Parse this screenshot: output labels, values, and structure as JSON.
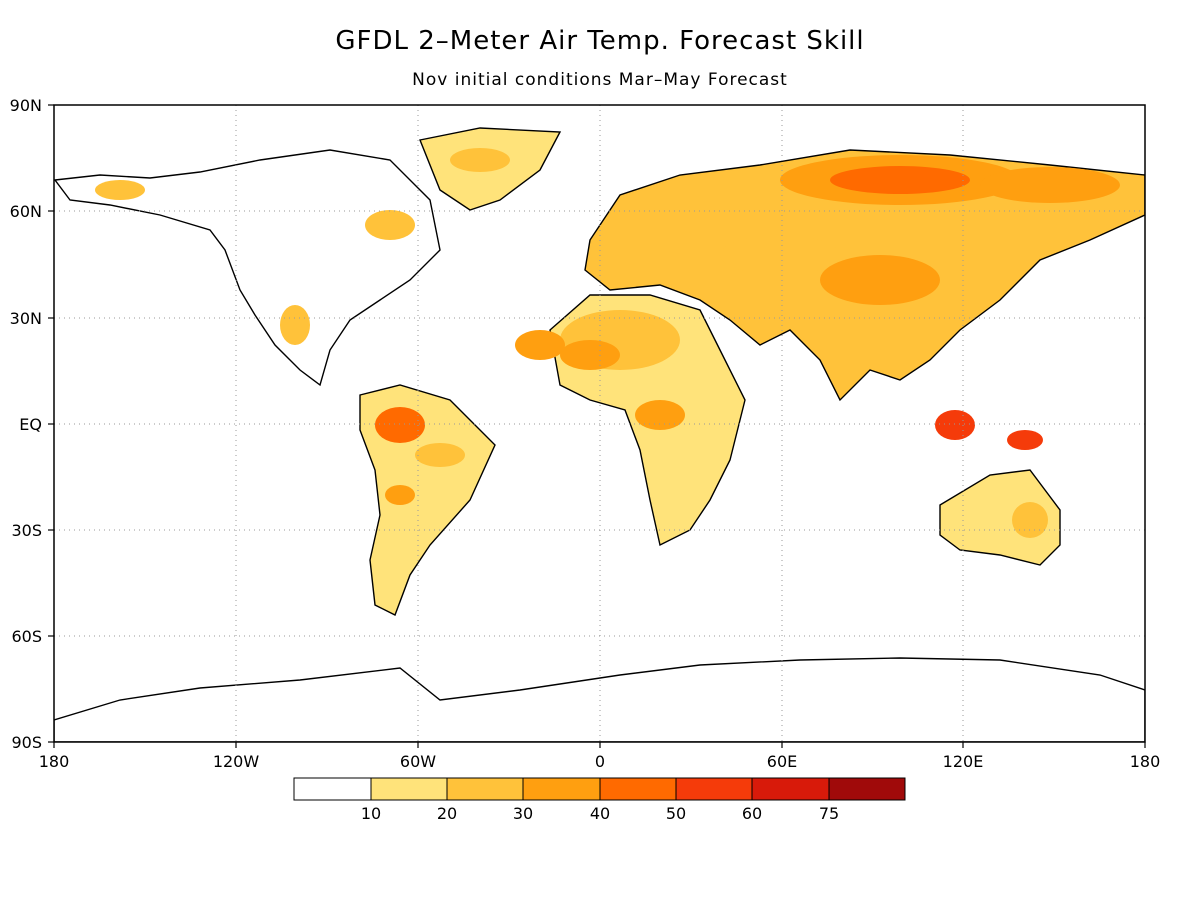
{
  "title": "GFDL 2–Meter Air Temp. Forecast Skill",
  "subtitle": "Nov initial conditions   Mar–May Forecast",
  "lat_labels": [
    "90N",
    "60N",
    "30N",
    "EQ",
    "30S",
    "60S",
    "90S"
  ],
  "lon_labels": [
    "180",
    "120W",
    "60W",
    "0",
    "60E",
    "120E",
    "180"
  ],
  "colorbar": {
    "levels": [
      "10",
      "20",
      "30",
      "40",
      "50",
      "60",
      "75"
    ],
    "colors": [
      "#ffffff",
      "#ffe37a",
      "#ffc23a",
      "#ff9f10",
      "#ff6a00",
      "#f53b0a",
      "#d81a0a",
      "#a00a0a"
    ]
  },
  "grid": "dotted"
}
